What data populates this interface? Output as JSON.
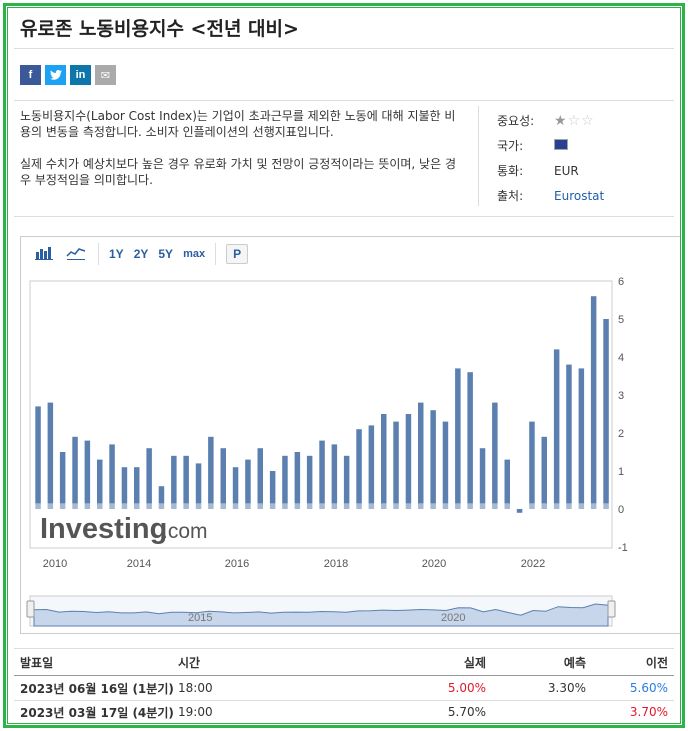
{
  "page": {
    "title": "유로존 노동비용지수 <전년 대비>"
  },
  "social": {
    "facebook": "f",
    "twitter": "t",
    "linkedin": "in",
    "email": "✉"
  },
  "description": {
    "p1": "노동비용지수(Labor Cost Index)는 기업이 초과근무를 제외한 노동에 대해 지불한 비용의 변동을 측정합니다. 소비자 인플레이션의 선행지표입니다.",
    "p2": "실제 수치가 예상치보다 높은 경우 유로화 가치 및 전망이 긍정적이라는 뜻이며, 낮은 경우 부정적임을 의미합니다."
  },
  "meta": {
    "importance_label": "중요성:",
    "importance_stars": 1,
    "country_label": "국가:",
    "currency_label": "통화:",
    "currency_value": "EUR",
    "source_label": "출처:",
    "source_value": "Eurostat"
  },
  "toolbar": {
    "range_1y": "1Y",
    "range_2y": "2Y",
    "range_5y": "5Y",
    "range_max": "max",
    "p_label": "P"
  },
  "watermark": {
    "brand": "Investing",
    "suffix": ".com"
  },
  "chart_data": {
    "type": "bar",
    "x_ticks": [
      "2010",
      "2014",
      "2016",
      "2018",
      "2020",
      "2022"
    ],
    "y_ticks": [
      "6",
      "5",
      "4",
      "3",
      "2",
      "1",
      "0",
      "-1"
    ],
    "ylim": [
      -1,
      6
    ],
    "navigator_labels": [
      "2015",
      "2020"
    ],
    "values": [
      2.7,
      2.8,
      1.5,
      1.9,
      1.8,
      1.3,
      1.7,
      1.1,
      1.1,
      1.6,
      0.6,
      1.4,
      1.4,
      1.2,
      1.9,
      1.6,
      1.1,
      1.3,
      1.6,
      1.0,
      1.4,
      1.5,
      1.4,
      1.8,
      1.7,
      1.4,
      2.1,
      2.2,
      2.5,
      2.3,
      2.5,
      2.8,
      2.6,
      2.3,
      3.7,
      3.6,
      1.6,
      2.8,
      1.3,
      -0.1,
      2.3,
      1.9,
      4.2,
      3.8,
      3.7,
      5.6,
      5.0
    ],
    "bar_color": "#5b80b0"
  },
  "table": {
    "headers": {
      "date": "발표일",
      "time": "시간",
      "actual": "실제",
      "forecast": "예측",
      "previous": "이전"
    },
    "rows": [
      {
        "date": "2023년 06월 16일 (1분기)",
        "time": "18:00",
        "actual": "5.00%",
        "forecast": "3.30%",
        "previous": "5.60%"
      },
      {
        "date": "2023년 03월 17일 (4분기)",
        "time": "19:00",
        "actual": "5.70%",
        "forecast": "",
        "previous": "3.70%"
      }
    ]
  }
}
